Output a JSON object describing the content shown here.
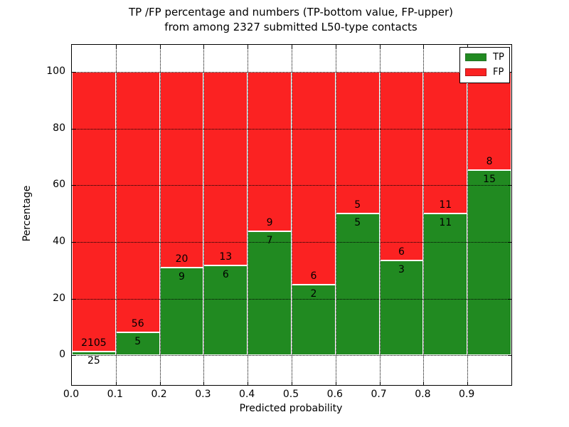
{
  "title": {
    "line1": "TP /FP percentage and numbers (TP-bottom value, FP-upper)",
    "line2": "from among 2327 submitted L50-type contacts"
  },
  "chart_data": {
    "type": "bar",
    "stacked": true,
    "normalized": "each bin scaled to 100%",
    "title": "TP /FP percentage and numbers (TP-bottom value, FP-upper) from among 2327 submitted L50-type contacts",
    "xlabel": "Predicted probability",
    "ylabel": "Percentage",
    "bin_edges": [
      0.0,
      0.1,
      0.2,
      0.3,
      0.4,
      0.5,
      0.6,
      0.7,
      0.8,
      0.9,
      1.0
    ],
    "categories": [
      "0.0-0.1",
      "0.1-0.2",
      "0.2-0.3",
      "0.3-0.4",
      "0.4-0.5",
      "0.5-0.6",
      "0.6-0.7",
      "0.7-0.8",
      "0.8-0.9",
      "0.9-1.0"
    ],
    "series": [
      {
        "name": "TP",
        "color": "#218a21",
        "counts": [
          25,
          5,
          9,
          6,
          7,
          2,
          5,
          3,
          11,
          15
        ]
      },
      {
        "name": "FP",
        "color": "#fb2222",
        "counts": [
          2105,
          56,
          20,
          13,
          9,
          6,
          5,
          6,
          11,
          8
        ]
      }
    ],
    "tp_percent": [
      1.2,
      8.2,
      31.0,
      31.6,
      43.8,
      25.0,
      50.0,
      33.3,
      50.0,
      65.2
    ],
    "total_contacts": 2327,
    "x_ticks": [
      "0.0",
      "0.1",
      "0.2",
      "0.3",
      "0.4",
      "0.5",
      "0.6",
      "0.7",
      "0.8",
      "0.9"
    ],
    "y_ticks": [
      0,
      20,
      40,
      60,
      80,
      100
    ],
    "xlim": [
      0.0,
      1.0
    ],
    "ylim": [
      -10.5,
      109.5
    ],
    "grid": true,
    "legend": {
      "position": "upper right",
      "entries": [
        {
          "label": "TP",
          "color": "#218a21"
        },
        {
          "label": "FP",
          "color": "#fb2222"
        }
      ]
    }
  }
}
